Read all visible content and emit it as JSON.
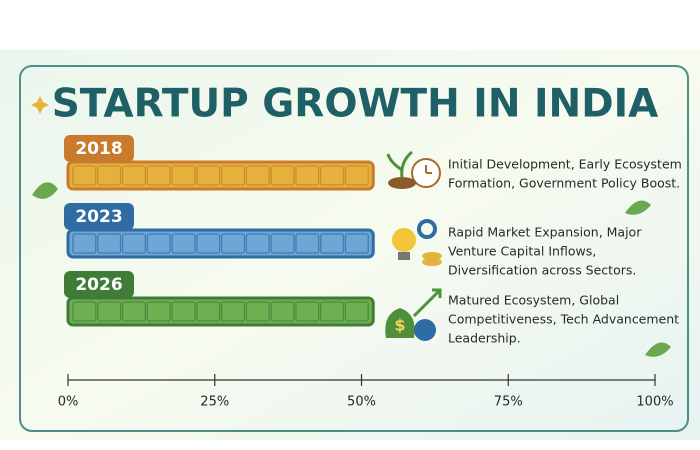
{
  "chart_data": {
    "type": "bar",
    "orientation": "horizontal",
    "title": "STARTUP GROWTH IN INDIA",
    "categories": [
      "2018",
      "2023",
      "2026"
    ],
    "values": [
      52,
      52,
      52
    ],
    "colors": [
      "#e4b23c",
      "#6ea6d6",
      "#6fae52"
    ],
    "tab_colors": [
      "#c97a2c",
      "#2f6ca3",
      "#3f7d36"
    ],
    "annotations": [
      [
        "Initial Development, Early Ecosystem",
        "Formation, Government Policy Boost."
      ],
      [
        "Rapid Market Expansion, Major",
        "Venture Capital Inflows,",
        "Diversification across Sectors."
      ],
      [
        "Matured Ecosystem, Global",
        "Competitiveness, Tech Advancement",
        "Leadership."
      ]
    ],
    "xlim": [
      0,
      100
    ],
    "xticks": [
      {
        "value": 0,
        "label": "0%"
      },
      {
        "value": 25,
        "label": "25%"
      },
      {
        "value": 50,
        "label": "50%"
      },
      {
        "value": 75,
        "label": "75%"
      },
      {
        "value": 100,
        "label": "100%"
      }
    ]
  }
}
